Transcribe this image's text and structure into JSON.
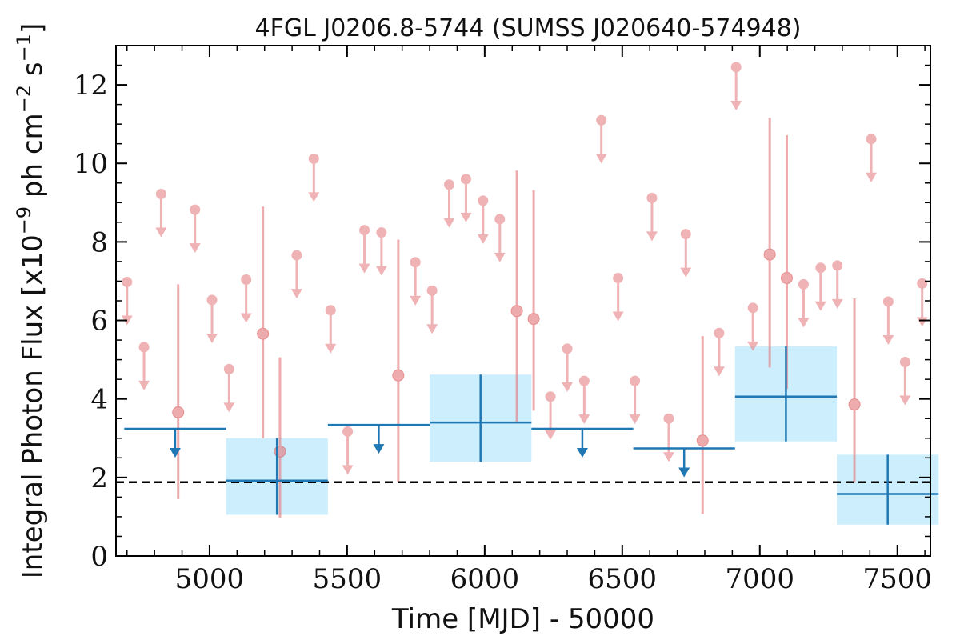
{
  "chart_data": {
    "type": "scatter",
    "title": "4FGL J0206.8-5744 (SUMSS J020640-574948)",
    "xlabel": "Time [MJD] - 50000",
    "ylabel": "Integral Photon Flux [x10^-9 ph cm^-2 s^-1]",
    "xlim": [
      4660,
      7620
    ],
    "ylim": [
      0,
      13
    ],
    "xticks": [
      5000,
      5500,
      6000,
      6500,
      7000,
      7500
    ],
    "yticks": [
      0,
      2,
      4,
      6,
      8,
      10,
      12
    ],
    "reference_line": {
      "y": 1.88,
      "style": "dashed"
    },
    "colors": {
      "fine_points": "#e57f84",
      "coarse_line": "#1f77b4",
      "coarse_box": "#cdeefc",
      "reference": "#000000"
    },
    "fine_upper_limits": [
      {
        "x": 4700,
        "y": 6.98
      },
      {
        "x": 4762,
        "y": 5.32
      },
      {
        "x": 4824,
        "y": 9.22
      },
      {
        "x": 4947,
        "y": 8.82
      },
      {
        "x": 5009,
        "y": 6.52
      },
      {
        "x": 5071,
        "y": 4.76
      },
      {
        "x": 5133,
        "y": 7.04
      },
      {
        "x": 5317,
        "y": 7.66
      },
      {
        "x": 5379,
        "y": 10.12
      },
      {
        "x": 5440,
        "y": 6.26
      },
      {
        "x": 5502,
        "y": 3.17
      },
      {
        "x": 5563,
        "y": 8.3
      },
      {
        "x": 5625,
        "y": 8.24
      },
      {
        "x": 5748,
        "y": 7.48
      },
      {
        "x": 5809,
        "y": 6.76
      },
      {
        "x": 5871,
        "y": 9.46
      },
      {
        "x": 5932,
        "y": 9.6
      },
      {
        "x": 5994,
        "y": 9.05
      },
      {
        "x": 6055,
        "y": 8.58
      },
      {
        "x": 6239,
        "y": 4.06
      },
      {
        "x": 6300,
        "y": 5.28
      },
      {
        "x": 6362,
        "y": 4.46
      },
      {
        "x": 6424,
        "y": 11.1
      },
      {
        "x": 6485,
        "y": 7.08
      },
      {
        "x": 6546,
        "y": 4.46
      },
      {
        "x": 6608,
        "y": 9.12
      },
      {
        "x": 6669,
        "y": 3.5
      },
      {
        "x": 6731,
        "y": 8.2
      },
      {
        "x": 6852,
        "y": 5.68
      },
      {
        "x": 6914,
        "y": 12.45
      },
      {
        "x": 6975,
        "y": 6.32
      },
      {
        "x": 7159,
        "y": 6.92
      },
      {
        "x": 7221,
        "y": 7.34
      },
      {
        "x": 7282,
        "y": 7.4
      },
      {
        "x": 7405,
        "y": 10.62
      },
      {
        "x": 7467,
        "y": 6.48
      },
      {
        "x": 7528,
        "y": 4.94
      },
      {
        "x": 7590,
        "y": 6.94
      }
    ],
    "fine_detections": [
      {
        "x": 4886,
        "y": 3.66,
        "ylo": 1.45,
        "yhi": 6.92
      },
      {
        "x": 5194,
        "y": 5.66,
        "ylo": 3.0,
        "yhi": 8.9
      },
      {
        "x": 5256,
        "y": 2.66,
        "ylo": 0.98,
        "yhi": 5.06
      },
      {
        "x": 5686,
        "y": 4.6,
        "ylo": 1.88,
        "yhi": 8.06
      },
      {
        "x": 6117,
        "y": 6.24,
        "ylo": 3.42,
        "yhi": 9.82
      },
      {
        "x": 6178,
        "y": 6.04,
        "ylo": 3.7,
        "yhi": 9.32
      },
      {
        "x": 6792,
        "y": 2.94,
        "ylo": 1.07,
        "yhi": 5.6
      },
      {
        "x": 7036,
        "y": 7.68,
        "ylo": 4.8,
        "yhi": 11.16
      },
      {
        "x": 7098,
        "y": 7.08,
        "ylo": 4.26,
        "yhi": 10.72
      },
      {
        "x": 7344,
        "y": 3.86,
        "ylo": 1.87,
        "yhi": 6.56
      }
    ],
    "coarse_upper_limits": [
      {
        "x0": 4690,
        "x1": 5060,
        "y": 3.24
      },
      {
        "x0": 5430,
        "x1": 5800,
        "y": 3.34
      },
      {
        "x0": 6170,
        "x1": 6540,
        "y": 3.24
      },
      {
        "x0": 6540,
        "x1": 6910,
        "y": 2.74
      }
    ],
    "coarse_detections": [
      {
        "x0": 5060,
        "x1": 5430,
        "y": 1.92,
        "ylo": 1.05,
        "yhi": 3.0
      },
      {
        "x0": 5800,
        "x1": 6170,
        "y": 3.4,
        "ylo": 2.4,
        "yhi": 4.62
      },
      {
        "x0": 6910,
        "x1": 7280,
        "y": 4.06,
        "ylo": 2.92,
        "yhi": 5.34
      },
      {
        "x0": 7280,
        "x1": 7650,
        "y": 1.58,
        "ylo": 0.8,
        "yhi": 2.58
      }
    ]
  }
}
